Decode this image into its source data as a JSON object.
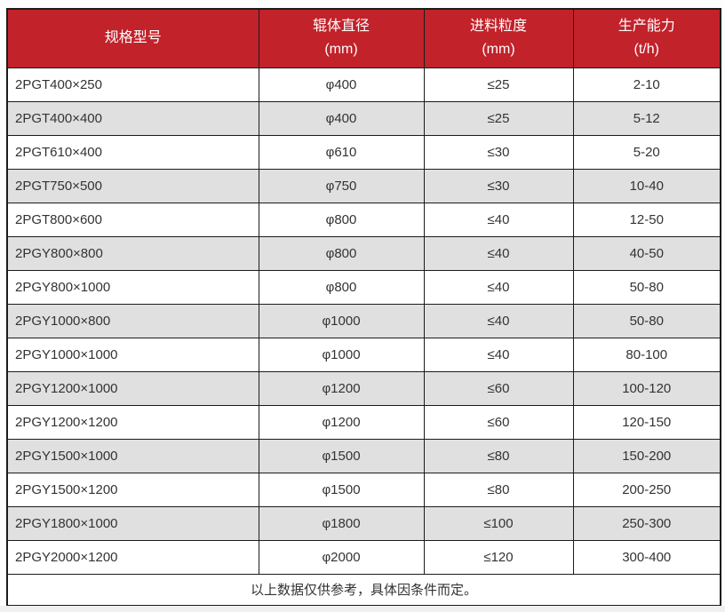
{
  "colors": {
    "header_bg": "#C2222A",
    "header_text": "#FFFFFF",
    "row_alt_bg": "#E0E0E0",
    "row_bg": "#FFFFFF",
    "border": "#1B1B1B",
    "text": "#333333"
  },
  "chart_data": {
    "type": "table",
    "columns": [
      {
        "title": "规格型号",
        "unit": ""
      },
      {
        "title": "辊体直径",
        "unit": "(mm)"
      },
      {
        "title": "进料粒度",
        "unit": "(mm)"
      },
      {
        "title": "生产能力",
        "unit": "(t/h)"
      }
    ],
    "rows": [
      [
        "2PGT400×250",
        "φ400",
        "≤25",
        "2-10"
      ],
      [
        "2PGT400×400",
        "φ400",
        "≤25",
        "5-12"
      ],
      [
        "2PGT610×400",
        "φ610",
        "≤30",
        "5-20"
      ],
      [
        "2PGT750×500",
        "φ750",
        "≤30",
        "10-40"
      ],
      [
        "2PGT800×600",
        "φ800",
        "≤40",
        "12-50"
      ],
      [
        "2PGY800×800",
        "φ800",
        "≤40",
        "40-50"
      ],
      [
        "2PGY800×1000",
        "φ800",
        "≤40",
        "50-80"
      ],
      [
        "2PGY1000×800",
        "φ1000",
        "≤40",
        "50-80"
      ],
      [
        "2PGY1000×1000",
        "φ1000",
        "≤40",
        "80-100"
      ],
      [
        "2PGY1200×1000",
        "φ1200",
        "≤60",
        "100-120"
      ],
      [
        "2PGY1200×1200",
        "φ1200",
        "≤60",
        "120-150"
      ],
      [
        "2PGY1500×1000",
        "φ1500",
        "≤80",
        "150-200"
      ],
      [
        "2PGY1500×1200",
        "φ1500",
        "≤80",
        "200-250"
      ],
      [
        "2PGY1800×1000",
        "φ1800",
        "≤100",
        "250-300"
      ],
      [
        "2PGY2000×1200",
        "φ2000",
        "≤120",
        "300-400"
      ]
    ],
    "footnote": "以上数据仅供参考，具体因条件而定。"
  }
}
